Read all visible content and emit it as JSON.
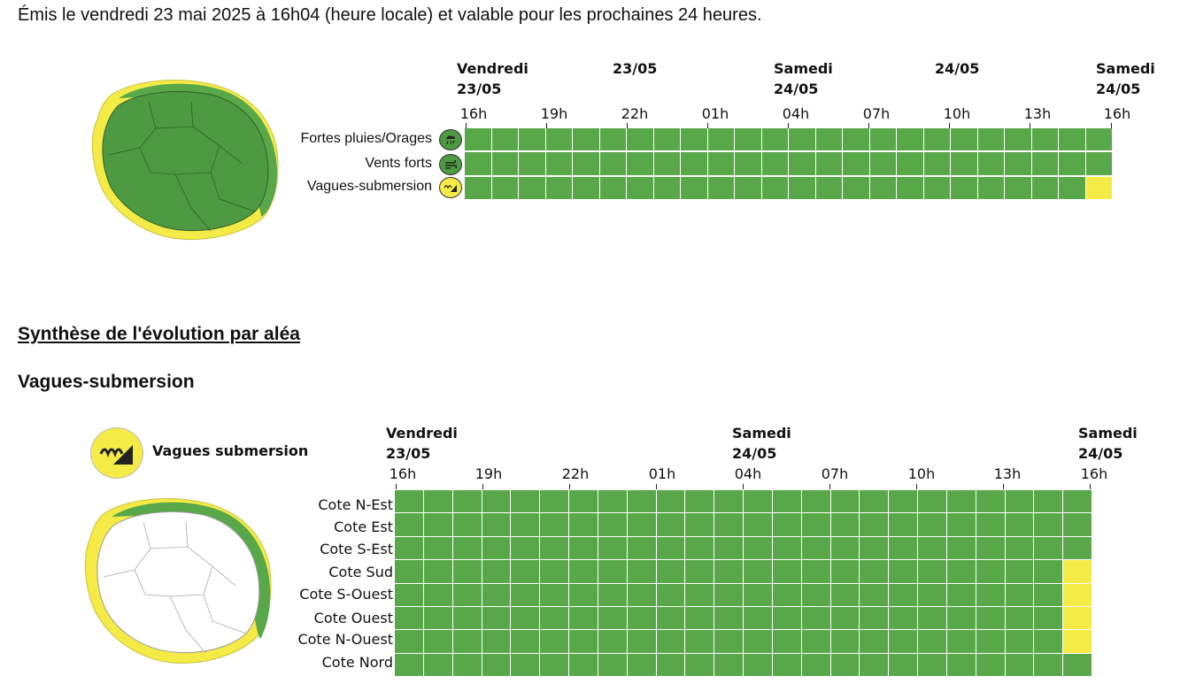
{
  "header": {
    "issued_text": "Émis le vendredi 23 mai 2025 à 16h04 (heure locale) et valable pour les prochaines 24 heures."
  },
  "overview": {
    "days": [
      {
        "d": "Vendredi",
        "date": "23/05"
      },
      {
        "d": "",
        "date": "23/05"
      },
      {
        "d": "Samedi",
        "date": "24/05"
      },
      {
        "d": "",
        "date": "24/05"
      },
      {
        "d": "Samedi",
        "date": "24/05"
      }
    ],
    "hours": [
      "16h",
      "19h",
      "22h",
      "01h",
      "04h",
      "07h",
      "10h",
      "13h",
      "16h"
    ],
    "rows": [
      {
        "label": "Fortes pluies/Orages",
        "icon": "heavy-rain-icon",
        "level_color": "#58a849",
        "cells": "gggggggggggggggggggggggg"
      },
      {
        "label": "Vents forts",
        "icon": "strong-wind-icon",
        "level_color": "#58a849",
        "cells": "gggggggggggggggggggggggg"
      },
      {
        "label": "Vagues-submersion",
        "icon": "waves-submersion-icon",
        "level_color": "#f5eb46",
        "cells": "gggggggggggggggggggggggy"
      }
    ]
  },
  "section_title": "Synthèse de l'évolution par aléa",
  "hazard": {
    "title": "Vagues-submersion",
    "legend_label": "Vagues submersion",
    "legend_icon": "waves-submersion-icon",
    "days": [
      {
        "d": "Vendredi",
        "date": "23/05"
      },
      {
        "d": "Samedi",
        "date": "24/05"
      },
      {
        "d": "Samedi",
        "date": "24/05"
      }
    ],
    "hours": [
      "16h",
      "19h",
      "22h",
      "01h",
      "04h",
      "07h",
      "10h",
      "13h",
      "16h"
    ],
    "rows": [
      {
        "label": "Cote N-Est",
        "cells": "gggggggggggggggggggggggg"
      },
      {
        "label": "Cote Est",
        "cells": "gggggggggggggggggggggggg"
      },
      {
        "label": "Cote S-Est",
        "cells": "gggggggggggggggggggggggg"
      },
      {
        "label": "Cote Sud",
        "cells": "gggggggggggggggggggggggy"
      },
      {
        "label": "Cote S-Ouest",
        "cells": "gggggggggggggggggggggggy"
      },
      {
        "label": "Cote Ouest",
        "cells": "gggggggggggggggggggggggy"
      },
      {
        "label": "Cote N-Ouest",
        "cells": "gggggggggggggggggggggggy"
      },
      {
        "label": "Cote Nord",
        "cells": "gggggggggggggggggggggggg"
      }
    ]
  },
  "colors": {
    "green_level": "#58a849",
    "yellow_level": "#f5eb46",
    "map_island_green": "#4e9a43",
    "map_island_white": "#ffffff"
  }
}
